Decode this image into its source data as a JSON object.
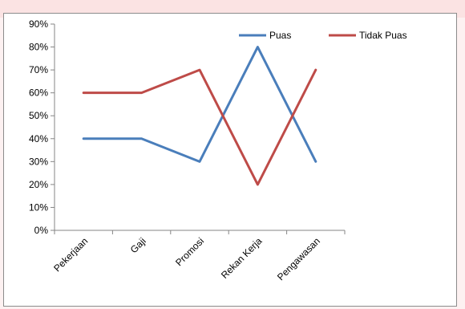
{
  "chart_data": {
    "type": "line",
    "categories": [
      "Pekerjaan",
      "Gaji",
      "Promosi",
      "Rekan Kerja",
      "Pengawasan"
    ],
    "series": [
      {
        "name": "Puas",
        "values": [
          40,
          40,
          30,
          80,
          30
        ],
        "color": "#4a7ebb"
      },
      {
        "name": "Tidak Puas",
        "values": [
          60,
          60,
          70,
          20,
          70
        ],
        "color": "#be4b48"
      }
    ],
    "y_ticks": [
      "0%",
      "10%",
      "20%",
      "30%",
      "40%",
      "50%",
      "60%",
      "70%",
      "80%",
      "90%"
    ],
    "ylim": [
      0,
      90
    ],
    "y_unit": "%",
    "grid": false,
    "legend_position": "top-right"
  }
}
